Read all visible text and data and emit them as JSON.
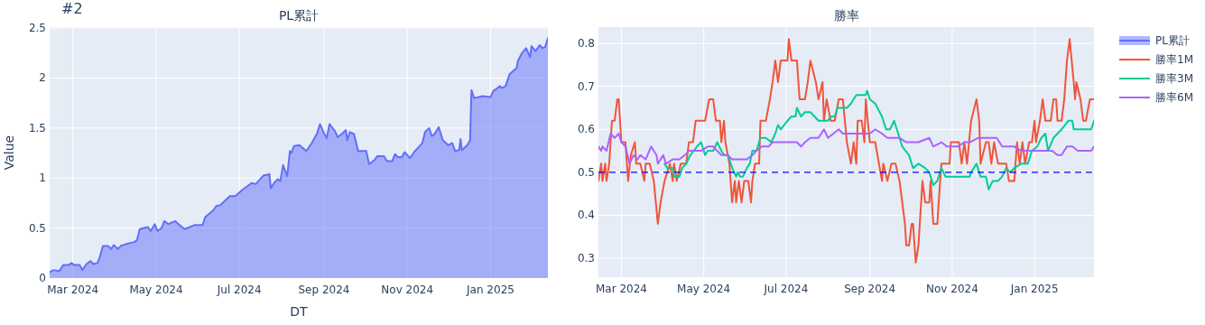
{
  "chart_data": [
    {
      "type": "area",
      "title": "PL累計",
      "xlabel": "DT",
      "ylabel": "Value",
      "annotations": [
        "#2"
      ],
      "grid": true,
      "legend": "right",
      "xlim": [
        "2024-02-13",
        "2025-02-12"
      ],
      "ylim": [
        0,
        2.51
      ],
      "xticks": [
        {
          "value": "2024-03-01",
          "label": "Mar 2024"
        },
        {
          "value": "2024-05-01",
          "label": "May 2024"
        },
        {
          "value": "2024-07-01",
          "label": "Jul 2024"
        },
        {
          "value": "2024-09-01",
          "label": "Sep 2024"
        },
        {
          "value": "2024-11-01",
          "label": "Nov 2024"
        },
        {
          "value": "2025-01-01",
          "label": "Jan 2025"
        }
      ],
      "yticks": [
        0,
        0.5,
        1,
        1.5,
        2,
        2.5
      ],
      "x": [
        "2024-02-13",
        "2024-02-16",
        "2024-02-20",
        "2024-02-23",
        "2024-02-27",
        "2024-02-29",
        "2024-03-02",
        "2024-03-06",
        "2024-03-08",
        "2024-03-11",
        "2024-03-14",
        "2024-03-16",
        "2024-03-19",
        "2024-03-21",
        "2024-03-23",
        "2024-03-27",
        "2024-03-29",
        "2024-03-31",
        "2024-04-03",
        "2024-04-05",
        "2024-04-09",
        "2024-04-15",
        "2024-04-17",
        "2024-04-19",
        "2024-04-25",
        "2024-04-27",
        "2024-04-30",
        "2024-05-02",
        "2024-05-05",
        "2024-05-07",
        "2024-05-10",
        "2024-05-15",
        "2024-05-19",
        "2024-05-22",
        "2024-05-29",
        "2024-06-04",
        "2024-06-06",
        "2024-06-12",
        "2024-06-14",
        "2024-06-17",
        "2024-06-24",
        "2024-06-28",
        "2024-07-03",
        "2024-07-10",
        "2024-07-13",
        "2024-07-19",
        "2024-07-21",
        "2024-07-23",
        "2024-07-24",
        "2024-07-27",
        "2024-07-29",
        "2024-07-31",
        "2024-08-02",
        "2024-08-05",
        "2024-08-07",
        "2024-08-08",
        "2024-08-10",
        "2024-08-14",
        "2024-08-19",
        "2024-08-23",
        "2024-08-27",
        "2024-08-29",
        "2024-09-01",
        "2024-09-03",
        "2024-09-05",
        "2024-09-09",
        "2024-09-11",
        "2024-09-14",
        "2024-09-17",
        "2024-09-18",
        "2024-09-20",
        "2024-09-23",
        "2024-09-26",
        "2024-10-02",
        "2024-10-04",
        "2024-10-08",
        "2024-10-10",
        "2024-10-15",
        "2024-10-17",
        "2024-10-21",
        "2024-10-23",
        "2024-10-25",
        "2024-10-28",
        "2024-10-30",
        "2024-11-03",
        "2024-11-06",
        "2024-11-10",
        "2024-11-12",
        "2024-11-14",
        "2024-11-17",
        "2024-11-19",
        "2024-11-21",
        "2024-11-24",
        "2024-11-27",
        "2024-12-01",
        "2024-12-04",
        "2024-12-06",
        "2024-12-09",
        "2024-12-10",
        "2024-12-11",
        "2024-12-15",
        "2024-12-17",
        "2024-12-18",
        "2024-12-20",
        "2024-12-26",
        "2025-01-01",
        "2025-01-03",
        "2025-01-08",
        "2025-01-09",
        "2025-01-12",
        "2025-01-15",
        "2025-01-20",
        "2025-01-21",
        "2025-01-24",
        "2025-01-27",
        "2025-01-30",
        "2025-01-31",
        "2025-02-03",
        "2025-02-06",
        "2025-02-08",
        "2025-02-10",
        "2025-02-12"
      ],
      "series": [
        {
          "name": "PL累計",
          "color": "#636efa",
          "values": [
            0.06,
            0.08,
            0.07,
            0.13,
            0.13,
            0.15,
            0.13,
            0.13,
            0.08,
            0.14,
            0.17,
            0.14,
            0.15,
            0.22,
            0.32,
            0.32,
            0.29,
            0.33,
            0.29,
            0.32,
            0.34,
            0.36,
            0.38,
            0.49,
            0.51,
            0.47,
            0.54,
            0.47,
            0.5,
            0.57,
            0.54,
            0.57,
            0.52,
            0.49,
            0.53,
            0.53,
            0.61,
            0.68,
            0.72,
            0.73,
            0.82,
            0.82,
            0.88,
            0.95,
            0.94,
            1.03,
            1.03,
            1.04,
            0.9,
            0.96,
            0.99,
            0.97,
            1.13,
            1.02,
            1.27,
            1.25,
            1.32,
            1.33,
            1.27,
            1.35,
            1.45,
            1.54,
            1.45,
            1.4,
            1.54,
            1.47,
            1.41,
            1.44,
            1.48,
            1.38,
            1.46,
            1.44,
            1.27,
            1.27,
            1.14,
            1.18,
            1.22,
            1.22,
            1.17,
            1.17,
            1.24,
            1.21,
            1.21,
            1.26,
            1.2,
            1.26,
            1.32,
            1.35,
            1.46,
            1.5,
            1.42,
            1.44,
            1.51,
            1.38,
            1.33,
            1.35,
            1.27,
            1.28,
            1.39,
            1.28,
            1.33,
            1.38,
            1.88,
            1.8,
            1.82,
            1.81,
            1.87,
            1.92,
            1.9,
            1.92,
            2.04,
            2.1,
            2.17,
            2.25,
            2.3,
            2.21,
            2.32,
            2.27,
            2.33,
            2.3,
            2.31,
            2.4
          ]
        }
      ]
    },
    {
      "type": "line",
      "title": "勝率",
      "grid": true,
      "legend": "right",
      "xlim": [
        "2024-02-13",
        "2025-02-14"
      ],
      "ylim": [
        0.256,
        0.838
      ],
      "xticks": [
        {
          "value": "2024-03-01",
          "label": "Mar 2024"
        },
        {
          "value": "2024-05-01",
          "label": "May 2024"
        },
        {
          "value": "2024-07-01",
          "label": "Jul 2024"
        },
        {
          "value": "2024-09-01",
          "label": "Sep 2024"
        },
        {
          "value": "2024-11-01",
          "label": "Nov 2024"
        },
        {
          "value": "2025-01-01",
          "label": "Jan 2025"
        }
      ],
      "yticks": [
        0.3,
        0.4,
        0.5,
        0.6,
        0.7,
        0.8
      ],
      "ref_lines": [
        {
          "axis": "y",
          "value": 0.5,
          "color": "#0000ff",
          "line_style": "dashed"
        }
      ],
      "series": [
        {
          "name": "勝率1M",
          "color": "#ef553b",
          "x": [
            "2024-02-13",
            "2024-02-15",
            "2024-02-16",
            "2024-02-18",
            "2024-02-19",
            "2024-02-21",
            "2024-02-23",
            "2024-02-25",
            "2024-02-27",
            "2024-02-28",
            "2024-03-01",
            "2024-03-04",
            "2024-03-06",
            "2024-03-08",
            "2024-03-11",
            "2024-03-12",
            "2024-03-15",
            "2024-03-18",
            "2024-03-19",
            "2024-03-22",
            "2024-03-25",
            "2024-03-28",
            "2024-03-30",
            "2024-04-02",
            "2024-04-06",
            "2024-04-08",
            "2024-04-09",
            "2024-04-11",
            "2024-04-14",
            "2024-04-18",
            "2024-04-20",
            "2024-04-23",
            "2024-04-25",
            "2024-05-02",
            "2024-05-05",
            "2024-05-08",
            "2024-05-10",
            "2024-05-13",
            "2024-05-14",
            "2024-05-16",
            "2024-05-17",
            "2024-05-20",
            "2024-05-22",
            "2024-05-24",
            "2024-05-25",
            "2024-05-27",
            "2024-05-29",
            "2024-05-31",
            "2024-06-03",
            "2024-06-05",
            "2024-06-06",
            "2024-06-08",
            "2024-06-11",
            "2024-06-12",
            "2024-06-16",
            "2024-06-19",
            "2024-06-21",
            "2024-06-23",
            "2024-06-25",
            "2024-06-27",
            "2024-07-02",
            "2024-07-03",
            "2024-07-05",
            "2024-07-09",
            "2024-07-11",
            "2024-07-15",
            "2024-07-17",
            "2024-07-19",
            "2024-07-23",
            "2024-07-25",
            "2024-07-28",
            "2024-07-29",
            "2024-07-31",
            "2024-08-03",
            "2024-08-06",
            "2024-08-09",
            "2024-08-12",
            "2024-08-15",
            "2024-08-18",
            "2024-08-20",
            "2024-08-22",
            "2024-08-23",
            "2024-08-26",
            "2024-08-28",
            "2024-08-29",
            "2024-09-01",
            "2024-09-05",
            "2024-09-10",
            "2024-09-11",
            "2024-09-14",
            "2024-09-17",
            "2024-09-20",
            "2024-09-23",
            "2024-09-25",
            "2024-09-27",
            "2024-09-28",
            "2024-09-30",
            "2024-10-02",
            "2024-10-03",
            "2024-10-05",
            "2024-10-07",
            "2024-10-10",
            "2024-10-12",
            "2024-10-15",
            "2024-10-16",
            "2024-10-18",
            "2024-10-21",
            "2024-10-22",
            "2024-10-24",
            "2024-10-30",
            "2024-10-31",
            "2024-11-06",
            "2024-11-08",
            "2024-11-10",
            "2024-11-12",
            "2024-11-15",
            "2024-11-19",
            "2024-11-21",
            "2024-11-22",
            "2024-11-26",
            "2024-11-28",
            "2024-11-30",
            "2024-12-02",
            "2024-12-05",
            "2024-12-11",
            "2024-12-13",
            "2024-12-17",
            "2024-12-19",
            "2024-12-21",
            "2024-12-23",
            "2024-12-25",
            "2024-12-28",
            "2024-12-30",
            "2025-01-01",
            "2025-01-02",
            "2025-01-05",
            "2025-01-07",
            "2025-01-09",
            "2025-01-13",
            "2025-01-15",
            "2025-01-17",
            "2025-01-18",
            "2025-01-21",
            "2025-01-23",
            "2025-01-25",
            "2025-01-27",
            "2025-01-30",
            "2025-01-31",
            "2025-02-01",
            "2025-02-04",
            "2025-02-06",
            "2025-02-08",
            "2025-02-11",
            "2025-02-14"
          ],
          "values": [
            0.48,
            0.52,
            0.48,
            0.52,
            0.48,
            0.52,
            0.62,
            0.62,
            0.67,
            0.67,
            0.57,
            0.57,
            0.48,
            0.54,
            0.57,
            0.52,
            0.52,
            0.48,
            0.52,
            0.52,
            0.48,
            0.38,
            0.43,
            0.48,
            0.52,
            0.48,
            0.52,
            0.48,
            0.52,
            0.52,
            0.57,
            0.57,
            0.62,
            0.62,
            0.67,
            0.67,
            0.62,
            0.62,
            0.57,
            0.62,
            0.57,
            0.52,
            0.43,
            0.48,
            0.43,
            0.48,
            0.43,
            0.48,
            0.48,
            0.43,
            0.48,
            0.52,
            0.52,
            0.62,
            0.62,
            0.67,
            0.71,
            0.76,
            0.71,
            0.76,
            0.76,
            0.81,
            0.76,
            0.76,
            0.67,
            0.67,
            0.71,
            0.76,
            0.71,
            0.67,
            0.71,
            0.62,
            0.67,
            0.62,
            0.62,
            0.67,
            0.67,
            0.57,
            0.52,
            0.57,
            0.52,
            0.62,
            0.62,
            0.57,
            0.67,
            0.57,
            0.57,
            0.48,
            0.52,
            0.48,
            0.52,
            0.52,
            0.48,
            0.43,
            0.38,
            0.33,
            0.33,
            0.38,
            0.38,
            0.29,
            0.33,
            0.48,
            0.43,
            0.43,
            0.48,
            0.38,
            0.38,
            0.43,
            0.52,
            0.52,
            0.57,
            0.57,
            0.52,
            0.57,
            0.52,
            0.62,
            0.67,
            0.62,
            0.52,
            0.57,
            0.57,
            0.52,
            0.57,
            0.52,
            0.52,
            0.48,
            0.48,
            0.57,
            0.52,
            0.57,
            0.52,
            0.57,
            0.57,
            0.62,
            0.57,
            0.62,
            0.67,
            0.62,
            0.62,
            0.67,
            0.67,
            0.62,
            0.62,
            0.67,
            0.76,
            0.81,
            0.71,
            0.67,
            0.71,
            0.67,
            0.62,
            0.62,
            0.67,
            0.67
          ]
        },
        {
          "name": "勝率3M",
          "color": "#00cc96",
          "x": [
            "2024-04-02",
            "2024-04-04",
            "2024-04-08",
            "2024-04-09",
            "2024-04-13",
            "2024-04-15",
            "2024-04-18",
            "2024-04-21",
            "2024-04-26",
            "2024-04-29",
            "2024-05-02",
            "2024-05-04",
            "2024-05-08",
            "2024-05-11",
            "2024-05-14",
            "2024-05-16",
            "2024-05-19",
            "2024-05-22",
            "2024-05-25",
            "2024-05-26",
            "2024-05-28",
            "2024-05-30",
            "2024-06-02",
            "2024-06-04",
            "2024-06-06",
            "2024-06-09",
            "2024-06-12",
            "2024-06-16",
            "2024-06-20",
            "2024-06-23",
            "2024-06-25",
            "2024-06-27",
            "2024-07-02",
            "2024-07-05",
            "2024-07-08",
            "2024-07-09",
            "2024-07-12",
            "2024-07-15",
            "2024-07-19",
            "2024-07-22",
            "2024-07-25",
            "2024-07-29",
            "2024-08-01",
            "2024-08-03",
            "2024-08-06",
            "2024-08-08",
            "2024-08-12",
            "2024-08-15",
            "2024-08-18",
            "2024-08-22",
            "2024-08-29",
            "2024-08-30",
            "2024-09-01",
            "2024-09-05",
            "2024-09-10",
            "2024-09-13",
            "2024-09-16",
            "2024-09-19",
            "2024-09-22",
            "2024-09-25",
            "2024-09-30",
            "2024-10-03",
            "2024-10-07",
            "2024-10-12",
            "2024-10-15",
            "2024-10-18",
            "2024-10-21",
            "2024-10-24",
            "2024-10-27",
            "2024-10-31",
            "2024-11-08",
            "2024-11-14",
            "2024-11-15",
            "2024-11-19",
            "2024-11-22",
            "2024-11-26",
            "2024-11-28",
            "2024-12-01",
            "2024-12-05",
            "2024-12-08",
            "2024-12-11",
            "2024-12-14",
            "2024-12-17",
            "2024-12-22",
            "2024-12-27",
            "2024-12-30",
            "2025-01-03",
            "2025-01-06",
            "2025-01-09",
            "2025-01-11",
            "2025-01-15",
            "2025-01-18",
            "2025-01-21",
            "2025-01-26",
            "2025-01-29",
            "2025-01-30",
            "2025-02-07",
            "2025-02-12",
            "2025-02-14"
          ],
          "values": [
            0.52,
            0.51,
            0.51,
            0.49,
            0.49,
            0.51,
            0.52,
            0.54,
            0.56,
            0.57,
            0.54,
            0.55,
            0.55,
            0.57,
            0.55,
            0.54,
            0.54,
            0.51,
            0.49,
            0.5,
            0.49,
            0.49,
            0.51,
            0.52,
            0.55,
            0.55,
            0.58,
            0.58,
            0.57,
            0.59,
            0.61,
            0.6,
            0.62,
            0.63,
            0.63,
            0.65,
            0.63,
            0.64,
            0.64,
            0.63,
            0.62,
            0.62,
            0.62,
            0.63,
            0.63,
            0.65,
            0.65,
            0.65,
            0.66,
            0.68,
            0.68,
            0.69,
            0.67,
            0.66,
            0.63,
            0.6,
            0.6,
            0.62,
            0.59,
            0.56,
            0.54,
            0.51,
            0.52,
            0.51,
            0.5,
            0.47,
            0.48,
            0.51,
            0.49,
            0.49,
            0.49,
            0.49,
            0.5,
            0.52,
            0.49,
            0.49,
            0.46,
            0.48,
            0.48,
            0.49,
            0.51,
            0.5,
            0.51,
            0.52,
            0.52,
            0.55,
            0.56,
            0.58,
            0.59,
            0.55,
            0.58,
            0.59,
            0.6,
            0.62,
            0.62,
            0.6,
            0.6,
            0.6,
            0.62
          ]
        },
        {
          "name": "勝率6M",
          "color": "#ab63fa",
          "x": [
            "2024-02-13",
            "2024-02-15",
            "2024-02-16",
            "2024-02-19",
            "2024-02-22",
            "2024-02-25",
            "2024-02-28",
            "2024-03-01",
            "2024-03-04",
            "2024-03-07",
            "2024-03-10",
            "2024-03-13",
            "2024-03-15",
            "2024-03-19",
            "2024-03-23",
            "2024-03-27",
            "2024-03-28",
            "2024-04-01",
            "2024-04-03",
            "2024-04-08",
            "2024-04-13",
            "2024-04-17",
            "2024-04-20",
            "2024-04-25",
            "2024-04-29",
            "2024-05-04",
            "2024-05-08",
            "2024-05-11",
            "2024-05-14",
            "2024-05-19",
            "2024-05-22",
            "2024-05-26",
            "2024-06-02",
            "2024-06-06",
            "2024-06-09",
            "2024-06-13",
            "2024-06-18",
            "2024-06-21",
            "2024-06-27",
            "2024-07-05",
            "2024-07-09",
            "2024-07-12",
            "2024-07-15",
            "2024-07-19",
            "2024-07-25",
            "2024-07-29",
            "2024-08-01",
            "2024-08-05",
            "2024-08-09",
            "2024-08-12",
            "2024-08-21",
            "2024-08-26",
            "2024-09-01",
            "2024-09-05",
            "2024-09-10",
            "2024-09-14",
            "2024-09-23",
            "2024-09-28",
            "2024-10-02",
            "2024-10-07",
            "2024-10-15",
            "2024-10-18",
            "2024-10-24",
            "2024-10-28",
            "2024-11-02",
            "2024-11-05",
            "2024-11-10",
            "2024-11-14",
            "2024-11-20",
            "2024-11-26",
            "2024-11-29",
            "2024-12-04",
            "2024-12-08",
            "2024-12-13",
            "2024-12-17",
            "2024-12-22",
            "2024-12-27",
            "2024-12-31",
            "2025-01-05",
            "2025-01-14",
            "2025-01-18",
            "2025-01-21",
            "2025-01-25",
            "2025-01-29",
            "2025-02-02",
            "2025-02-06",
            "2025-02-12",
            "2025-02-14"
          ],
          "values": [
            0.56,
            0.55,
            0.56,
            0.55,
            0.59,
            0.58,
            0.59,
            0.57,
            0.56,
            0.52,
            0.54,
            0.53,
            0.54,
            0.53,
            0.56,
            0.54,
            0.52,
            0.54,
            0.52,
            0.53,
            0.53,
            0.54,
            0.55,
            0.55,
            0.55,
            0.56,
            0.56,
            0.55,
            0.54,
            0.54,
            0.53,
            0.53,
            0.53,
            0.54,
            0.55,
            0.56,
            0.56,
            0.57,
            0.57,
            0.57,
            0.57,
            0.56,
            0.57,
            0.58,
            0.58,
            0.6,
            0.58,
            0.59,
            0.6,
            0.59,
            0.59,
            0.59,
            0.59,
            0.6,
            0.59,
            0.58,
            0.58,
            0.57,
            0.57,
            0.57,
            0.58,
            0.56,
            0.57,
            0.56,
            0.56,
            0.56,
            0.57,
            0.57,
            0.58,
            0.58,
            0.58,
            0.58,
            0.56,
            0.56,
            0.56,
            0.55,
            0.55,
            0.55,
            0.55,
            0.55,
            0.54,
            0.54,
            0.56,
            0.56,
            0.55,
            0.55,
            0.55,
            0.56
          ]
        }
      ]
    }
  ]
}
